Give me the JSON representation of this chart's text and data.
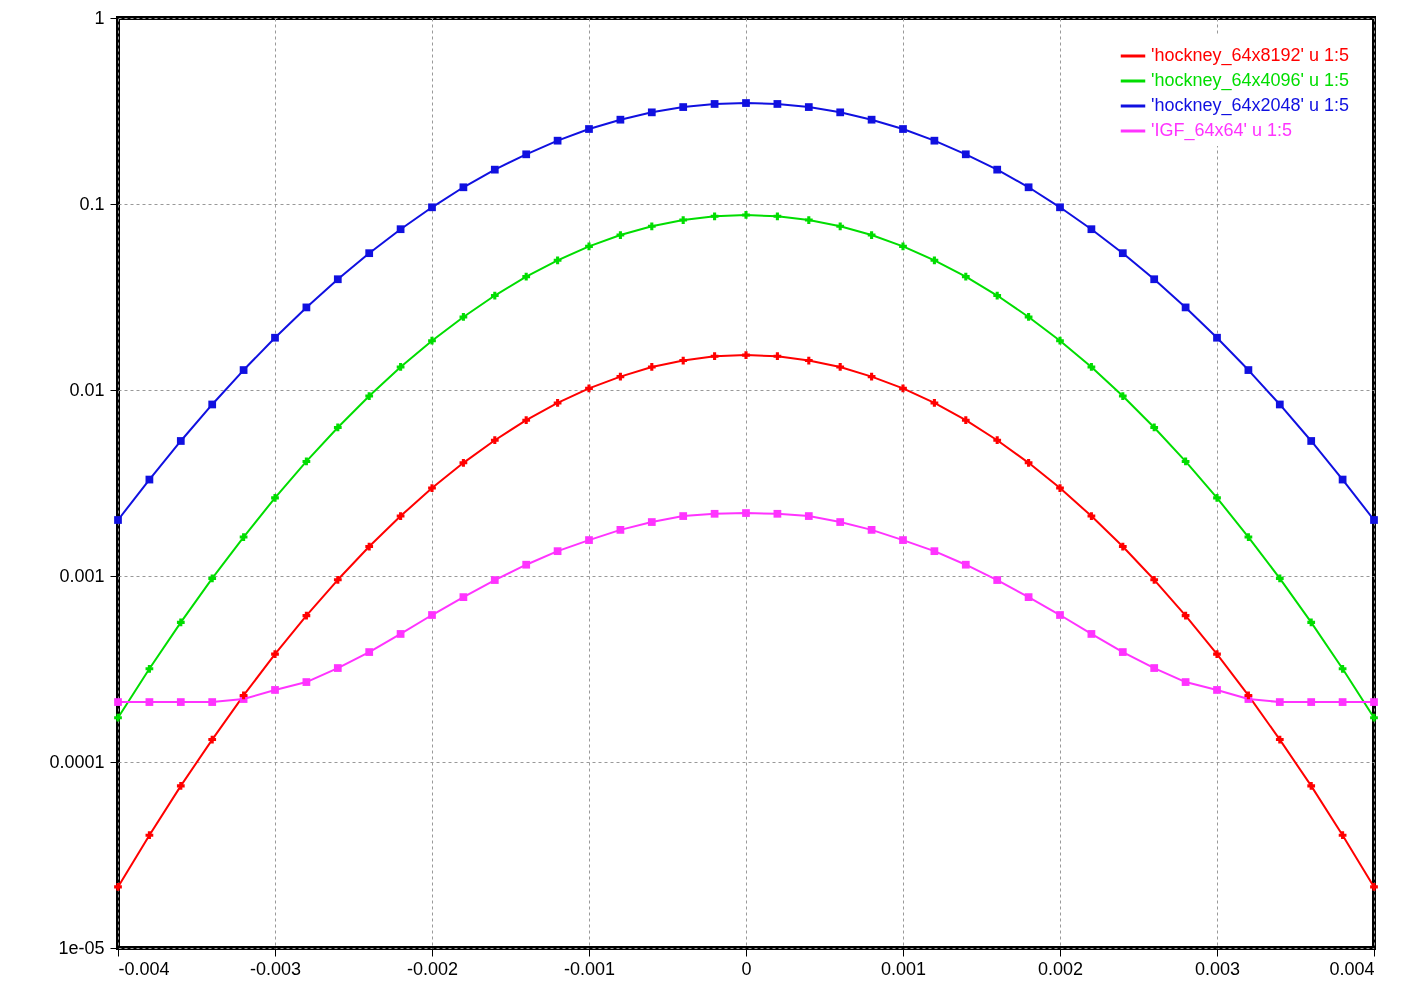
{
  "chart_data": {
    "type": "line",
    "log": "y",
    "grid": true,
    "legend": "top right",
    "line_style": "solid",
    "x": [
      -0.004,
      -0.0038,
      -0.0036,
      -0.0034,
      -0.0032,
      -0.003,
      -0.0028,
      -0.0026,
      -0.0024,
      -0.0022,
      -0.002,
      -0.0018,
      -0.0016,
      -0.0014,
      -0.0012,
      -0.001,
      -0.0008,
      -0.0006,
      -0.0004,
      -0.0002,
      0,
      0.0002,
      0.0004,
      0.0006,
      0.0008,
      0.001,
      0.0012,
      0.0014,
      0.0016,
      0.0018,
      0.002,
      0.0022,
      0.0024,
      0.0026,
      0.0028,
      0.003,
      0.0032,
      0.0034,
      0.0036,
      0.0038,
      0.004
    ],
    "xlim": [
      -0.004,
      0.004
    ],
    "xticks": [
      -0.004,
      -0.003,
      -0.002,
      -0.001,
      0,
      0.001,
      0.002,
      0.003,
      0.004
    ],
    "ylim": [
      1e-05,
      1
    ],
    "yticks": [
      {
        "value": 1e-05,
        "label": "1e-05"
      },
      0.0001,
      0.001,
      0.01,
      0.1,
      1
    ],
    "series": [
      {
        "name": "'hockney_64x8192' u 1:5",
        "color": "#ff0000",
        "marker": "cross",
        "values": [
          2.13e-05,
          4.04e-05,
          7.44e-05,
          0.000132,
          0.000228,
          0.00038,
          0.000612,
          0.000954,
          0.00144,
          0.0021,
          0.00297,
          0.00406,
          0.00537,
          0.00688,
          0.00852,
          0.0102,
          0.0118,
          0.0133,
          0.0144,
          0.0152,
          0.0154,
          0.0152,
          0.0144,
          0.0133,
          0.0118,
          0.0102,
          0.00852,
          0.00688,
          0.00537,
          0.00406,
          0.00297,
          0.0021,
          0.00144,
          0.000954,
          0.000612,
          0.00038,
          0.000228,
          0.000132,
          7.44e-05,
          4.04e-05,
          2.13e-05
        ]
      },
      {
        "name": "'hockney_64x4096' u 1:5",
        "color": "#00dd00",
        "marker": "cross",
        "values": [
          0.000173,
          0.000317,
          0.000563,
          0.000971,
          0.00162,
          0.00263,
          0.00413,
          0.00629,
          0.00928,
          0.0133,
          0.0184,
          0.0247,
          0.0322,
          0.0407,
          0.0498,
          0.0592,
          0.0681,
          0.0759,
          0.082,
          0.0859,
          0.0873,
          0.0859,
          0.082,
          0.0759,
          0.0681,
          0.0592,
          0.0498,
          0.0407,
          0.0322,
          0.0247,
          0.0184,
          0.0133,
          0.00928,
          0.00629,
          0.00413,
          0.00263,
          0.00162,
          0.000971,
          0.000563,
          0.000317,
          0.000173
        ]
      },
      {
        "name": "'hockney_64x2048' u 1:5",
        "color": "#1010e0",
        "marker": "square",
        "values": [
          0.002,
          0.0033,
          0.00532,
          0.00836,
          0.0128,
          0.0191,
          0.0278,
          0.0394,
          0.0544,
          0.0732,
          0.096,
          0.123,
          0.153,
          0.185,
          0.219,
          0.253,
          0.284,
          0.311,
          0.332,
          0.345,
          0.349,
          0.345,
          0.332,
          0.311,
          0.284,
          0.253,
          0.219,
          0.185,
          0.153,
          0.123,
          0.096,
          0.0732,
          0.0544,
          0.0394,
          0.0278,
          0.0191,
          0.0128,
          0.00836,
          0.00532,
          0.0033,
          0.002
        ]
      },
      {
        "name": "'IGF_64x64' u 1:5",
        "color": "#ff33ff",
        "marker": "square",
        "values": [
          0.00021,
          0.00021,
          0.00021,
          0.00021,
          0.000218,
          0.000244,
          0.000269,
          0.00032,
          0.00039,
          0.000488,
          0.000617,
          0.00077,
          0.000951,
          0.00115,
          0.00136,
          0.00156,
          0.00177,
          0.00195,
          0.0021,
          0.00216,
          0.00218,
          0.00216,
          0.0021,
          0.00195,
          0.00177,
          0.00156,
          0.00136,
          0.00115,
          0.000951,
          0.00077,
          0.000617,
          0.000488,
          0.00039,
          0.00032,
          0.000269,
          0.000244,
          0.000218,
          0.00021,
          0.00021,
          0.00021,
          0.00021
        ]
      }
    ]
  }
}
